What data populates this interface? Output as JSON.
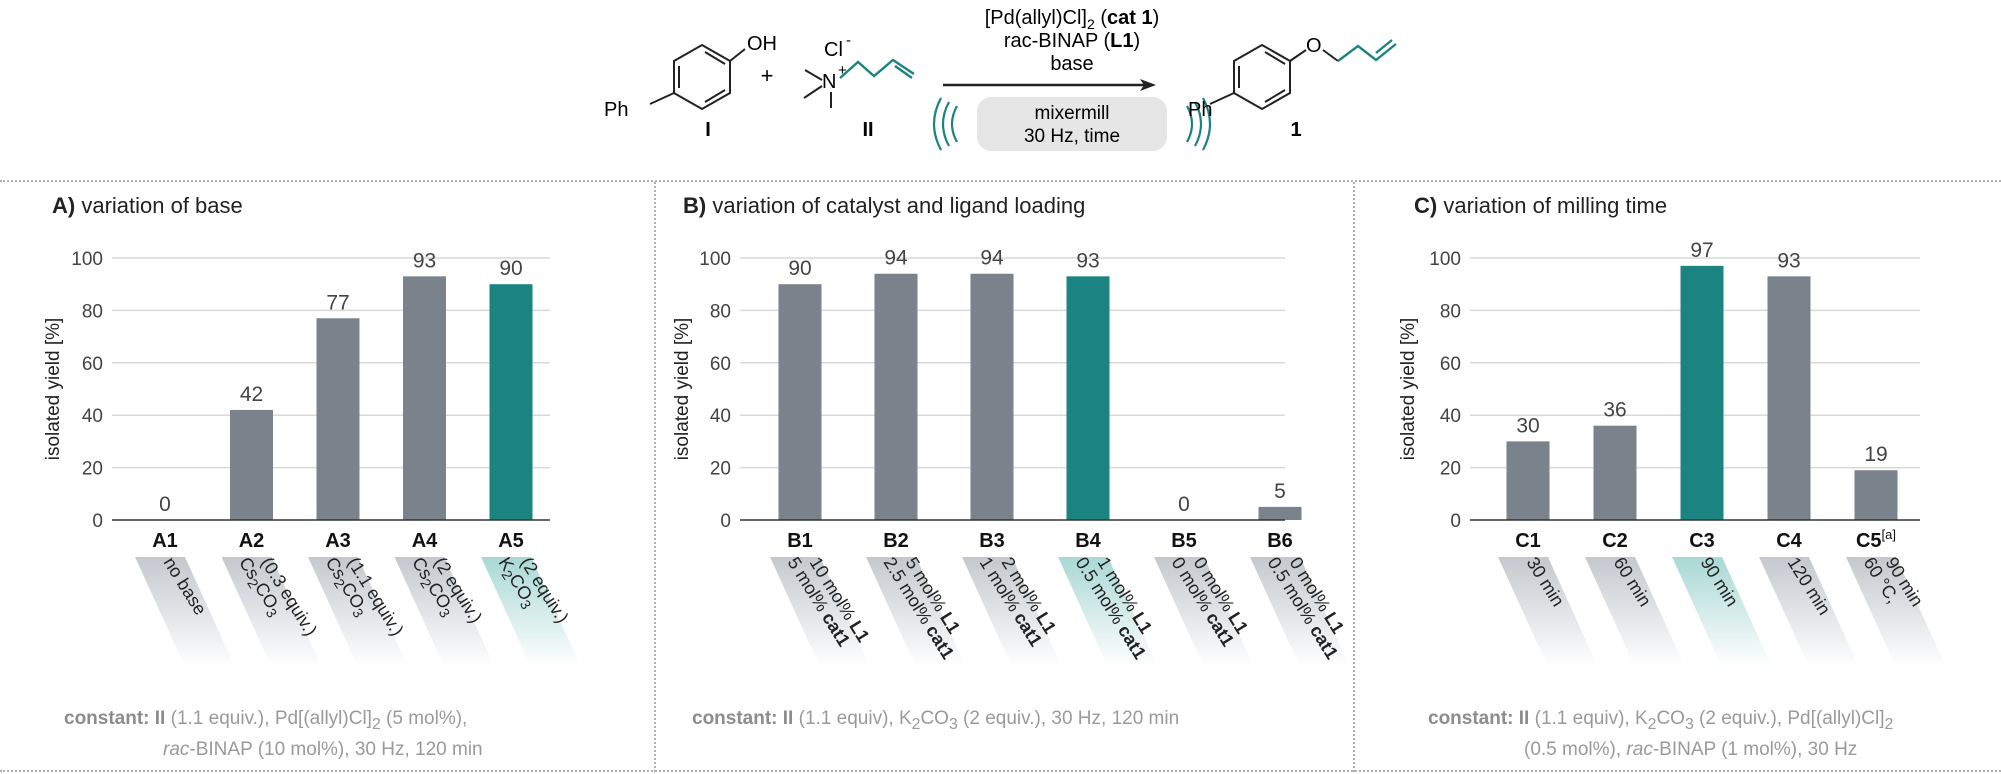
{
  "scheme": {
    "reactant_i_label": "I",
    "reactant_ii_label": "II",
    "product_label": "1",
    "oh_label": "OH",
    "ph_label": "Ph",
    "cl_label": "Cl",
    "n_label": "N",
    "plus": "+",
    "cond_line1_a": "[Pd(allyl)Cl]",
    "cond_line1_sub": "2",
    "cond_line1_b": " (",
    "cond_line1_bold": "cat 1",
    "cond_line1_c": ")",
    "cond_line2_a": "rac-BINAP (",
    "cond_line2_bold": "L1",
    "cond_line2_c": ")",
    "cond_line3": "base",
    "mill_line1": "mixermill",
    "mill_line2": "30 Hz, time",
    "o_label": "O"
  },
  "colors": {
    "gray_bar": "#7a838c",
    "teal_bar": "#1c8480",
    "axis": "#333333",
    "grid": "#d9d9d9"
  },
  "panels": [
    {
      "title_bold": "A)",
      "title_rest": " variation of base",
      "footnote_line1": [
        "constant: II",
        " (1.1 equiv.), Pd[(allyl)Cl]",
        "2",
        " (5 mol%),"
      ],
      "footnote_line2": [
        "rac",
        "-BINAP (10 mol%), 30 Hz, 120 min"
      ]
    },
    {
      "title_bold": "B)",
      "title_rest": " variation of catalyst and ligand loading",
      "footnote_line1": [
        "constant: II",
        " (1.1 equiv), K",
        "2",
        "CO",
        "3",
        " (2 equiv.), 30 Hz, 120 min"
      ]
    },
    {
      "title_bold": "C)",
      "title_rest": " variation of milling time",
      "footnote_line1": [
        "constant: II",
        " (1.1 equiv), K",
        "2",
        "CO",
        "3",
        " (2 equiv.), Pd[(allyl)Cl]",
        "2"
      ],
      "footnote_line2": [
        "(0.5 mol%), ",
        "rac",
        "-BINAP (1 mol%), 30 Hz"
      ]
    }
  ],
  "chart_data": [
    {
      "type": "bar",
      "ylabel": "isolated yield [%]",
      "ylim": [
        0,
        100
      ],
      "yticks": [
        0,
        20,
        40,
        60,
        80,
        100
      ],
      "categories": [
        "A1",
        "A2",
        "A3",
        "A4",
        "A5"
      ],
      "values": [
        0,
        42,
        77,
        93,
        90
      ],
      "highlight_index": 4,
      "condition_labels": [
        [
          [
            "no base"
          ]
        ],
        [
          [
            "Cs",
            "2",
            "CO",
            "3"
          ],
          [
            "(0.3 equiv.)"
          ]
        ],
        [
          [
            "Cs",
            "2",
            "CO",
            "3"
          ],
          [
            "(1.1 equiv.)"
          ]
        ],
        [
          [
            "Cs",
            "2",
            "CO",
            "3"
          ],
          [
            "(2 equiv.)"
          ]
        ],
        [
          [
            "K",
            "2",
            "CO",
            "3"
          ],
          [
            "(2 equiv.)"
          ]
        ]
      ]
    },
    {
      "type": "bar",
      "ylabel": "isolated yield [%]",
      "ylim": [
        0,
        100
      ],
      "yticks": [
        0,
        20,
        40,
        60,
        80,
        100
      ],
      "categories": [
        "B1",
        "B2",
        "B3",
        "B4",
        "B5",
        "B6"
      ],
      "values": [
        90,
        94,
        94,
        93,
        0,
        5
      ],
      "highlight_index": 3,
      "condition_labels": [
        [
          [
            "5 mol% ",
            "cat1"
          ],
          [
            "10 mol% ",
            "L1"
          ]
        ],
        [
          [
            "2.5 mol% ",
            "cat1"
          ],
          [
            "5 mol% ",
            "L1"
          ]
        ],
        [
          [
            "1 mol% ",
            "cat1"
          ],
          [
            "2 mol% ",
            "L1"
          ]
        ],
        [
          [
            "0.5 mol% ",
            "cat1"
          ],
          [
            "1 mol% ",
            "L1"
          ]
        ],
        [
          [
            "0 mol% ",
            "cat1"
          ],
          [
            "0 mol% ",
            "L1"
          ]
        ],
        [
          [
            "0.5 mol% ",
            "cat1"
          ],
          [
            "0 mol% ",
            "L1"
          ]
        ]
      ]
    },
    {
      "type": "bar",
      "ylabel": "isolated yield [%]",
      "ylim": [
        0,
        100
      ],
      "yticks": [
        0,
        20,
        40,
        60,
        80,
        100
      ],
      "categories": [
        "C1",
        "C2",
        "C3",
        "C4",
        "C5"
      ],
      "category_superscripts": [
        "",
        "",
        "",
        "",
        "[a]"
      ],
      "values": [
        30,
        36,
        97,
        93,
        19
      ],
      "highlight_index": 2,
      "condition_labels": [
        [
          [
            "30 min"
          ]
        ],
        [
          [
            "60 min"
          ]
        ],
        [
          [
            "90 min"
          ]
        ],
        [
          [
            "120 min"
          ]
        ],
        [
          [
            "60 °C,"
          ],
          [
            "90 min"
          ]
        ]
      ]
    }
  ]
}
